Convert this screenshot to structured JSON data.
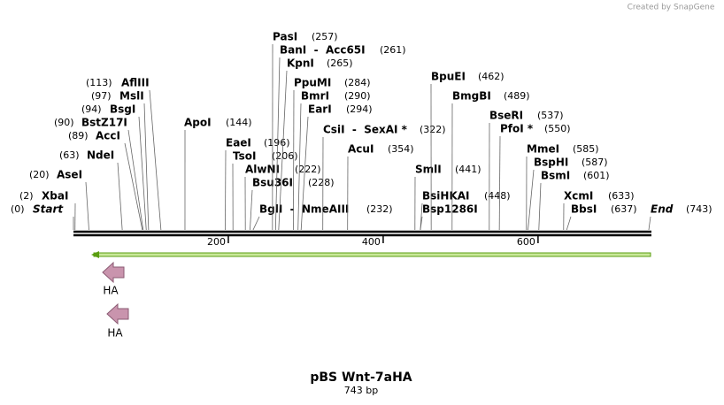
{
  "header": {
    "credit": "Created by SnapGene"
  },
  "sites": [
    {
      "name": "Start",
      "position": 0,
      "label": "(0)"
    },
    {
      "name": "XbaI",
      "position": 2,
      "label": "(2)"
    },
    {
      "name": "AseI",
      "position": 20,
      "label": "(20)"
    },
    {
      "name": "NdeI",
      "position": 63,
      "label": "(63)"
    },
    {
      "name": "AccI",
      "position": 89,
      "label": "(89)"
    },
    {
      "name": "BstZ17I",
      "position": 90,
      "label": "(90)"
    },
    {
      "name": "BsgI",
      "position": 94,
      "label": "(94)"
    },
    {
      "name": "MslI",
      "position": 97,
      "label": "(97)"
    },
    {
      "name": "AflIII",
      "position": 113,
      "label": "(113)"
    },
    {
      "name": "ApoI",
      "position": 144,
      "label": "(144)"
    },
    {
      "name": "EaeI",
      "position": 196,
      "label": "(196)"
    },
    {
      "name": "TsoI",
      "position": 206,
      "label": "(206)"
    },
    {
      "name": "AlwNI",
      "position": 222,
      "label": "(222)"
    },
    {
      "name": "Bsu36I",
      "position": 228,
      "label": "(228)"
    },
    {
      "name": "BglI  -  NmeAIII",
      "position": 232,
      "label": "(232)"
    },
    {
      "name": "PasI",
      "position": 257,
      "label": "(257)"
    },
    {
      "name": "BanI  -  Acc65I",
      "position": 261,
      "label": "(261)"
    },
    {
      "name": "KpnI",
      "position": 265,
      "label": "(265)"
    },
    {
      "name": "PpuMI",
      "position": 284,
      "label": "(284)"
    },
    {
      "name": "BmrI",
      "position": 290,
      "label": "(290)"
    },
    {
      "name": "EarI",
      "position": 294,
      "label": "(294)"
    },
    {
      "name": "CsiI  -  SexAI *",
      "position": 322,
      "label": "(322)"
    },
    {
      "name": "AcuI",
      "position": 354,
      "label": "(354)"
    },
    {
      "name": "SmlI",
      "position": 441,
      "label": "(441)"
    },
    {
      "name": "BsiHKAI",
      "position": 448,
      "label": "(448)"
    },
    {
      "name": "Bsp1286I",
      "position": 448
    },
    {
      "name": "BpuEI",
      "position": 462,
      "label": "(462)"
    },
    {
      "name": "BmgBI",
      "position": 489,
      "label": "(489)"
    },
    {
      "name": "BseRI",
      "position": 537,
      "label": "(537)"
    },
    {
      "name": "PfoI *",
      "position": 550,
      "label": "(550)"
    },
    {
      "name": "MmeI",
      "position": 585,
      "label": "(585)"
    },
    {
      "name": "BspHI",
      "position": 587,
      "label": "(587)"
    },
    {
      "name": "BsmI",
      "position": 601,
      "label": "(601)"
    },
    {
      "name": "XcmI",
      "position": 633,
      "label": "(633)"
    },
    {
      "name": "BbsI",
      "position": 637,
      "label": "(637)"
    },
    {
      "name": "End",
      "position": 743,
      "label": "(743)"
    }
  ],
  "ruler_ticks": [
    200,
    400,
    600
  ],
  "features": [
    {
      "name": "HA"
    },
    {
      "name": "HA"
    }
  ],
  "footer": {
    "title": "pBS Wnt-7aHA",
    "length": "743 bp"
  }
}
